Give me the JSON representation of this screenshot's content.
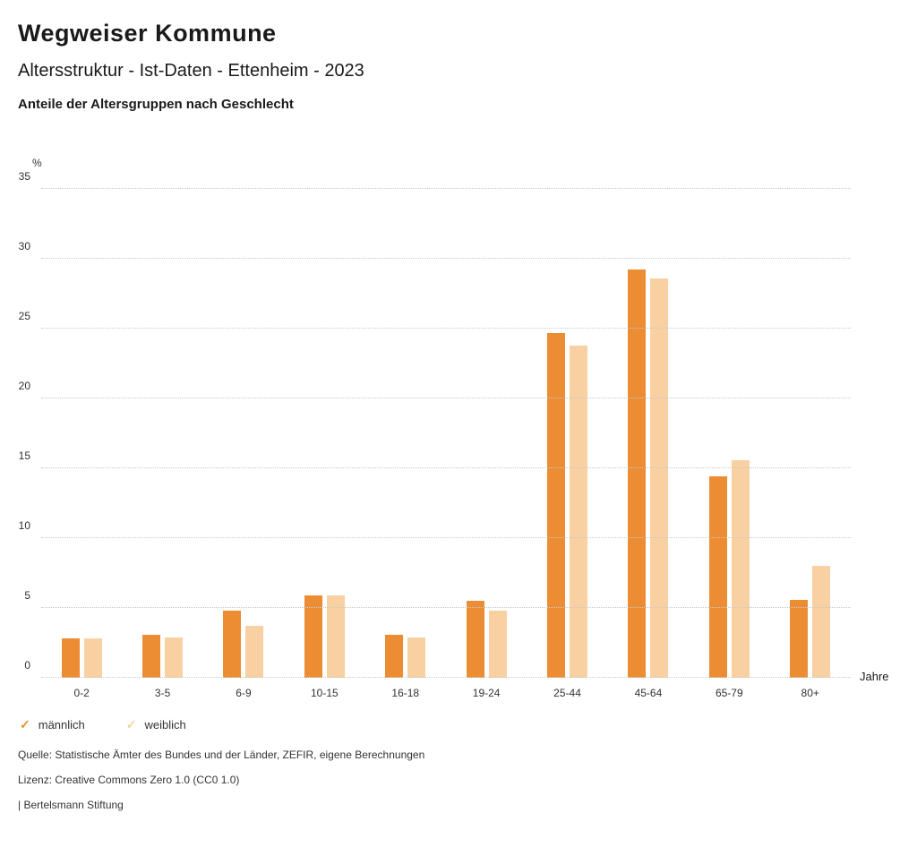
{
  "header": {
    "title": "Wegweiser Kommune",
    "subtitle": "Altersstruktur - Ist-Daten - Ettenheim - 2023",
    "chart_heading": "Anteile der Altersgruppen nach Geschlecht"
  },
  "chart_data": {
    "type": "bar",
    "title": "Anteile der Altersgruppen nach Geschlecht",
    "categories": [
      "0-2",
      "3-5",
      "6-9",
      "10-15",
      "16-18",
      "19-24",
      "25-44",
      "45-64",
      "65-79",
      "80+"
    ],
    "series": [
      {
        "name": "männlich",
        "color": "#ec8d33",
        "values": [
          2.8,
          3.1,
          4.8,
          5.9,
          3.1,
          5.5,
          24.7,
          29.2,
          14.4,
          5.6
        ]
      },
      {
        "name": "weiblich",
        "color": "#f8d0a2",
        "values": [
          2.8,
          2.9,
          3.7,
          5.9,
          2.9,
          4.8,
          23.8,
          28.6,
          15.6,
          8.0
        ]
      }
    ],
    "ylabel": "%",
    "xlabel": "Jahre",
    "ylim": [
      0,
      35
    ],
    "yticks": [
      0,
      5,
      10,
      15,
      20,
      25,
      30,
      35
    ],
    "grid": true,
    "legend_position": "bottom"
  },
  "legend": {
    "items": [
      {
        "label": "männlich",
        "color": "#ec8d33",
        "icon": "check-icon"
      },
      {
        "label": "weiblich",
        "color": "#f8d0a2",
        "icon": "check-icon"
      }
    ]
  },
  "footer": {
    "source": "Quelle: Statistische Ämter des Bundes und der Länder, ZEFIR, eigene Berechnungen",
    "license": "Lizenz: Creative Commons Zero 1.0 (CC0 1.0)",
    "attribution": "| Bertelsmann Stiftung"
  }
}
